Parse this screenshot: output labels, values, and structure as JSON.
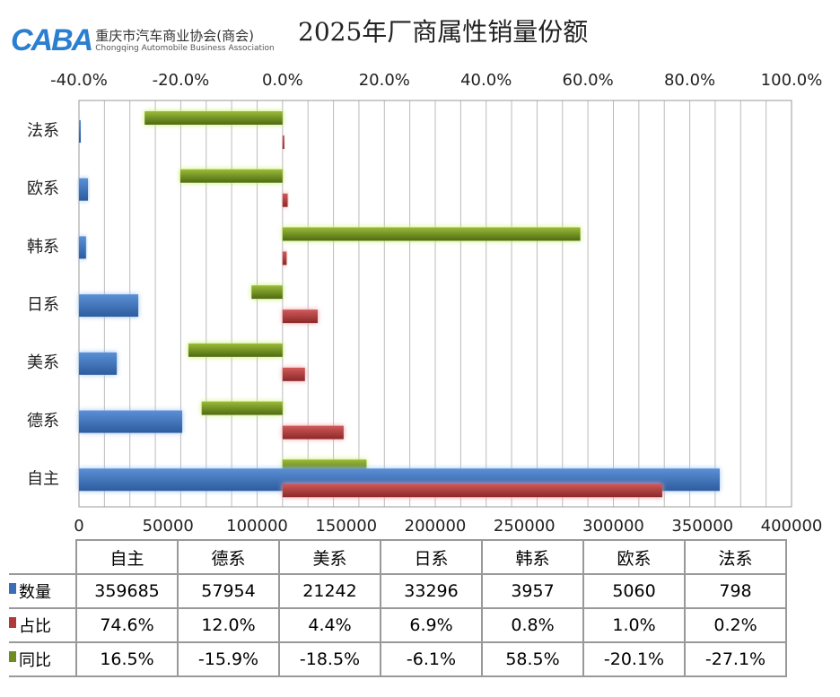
{
  "logo": {
    "mark": "CABA",
    "cn": "重庆市汽车商业协会(商会)",
    "en": "Chongqing Automobile Business Association"
  },
  "chart_data": {
    "type": "bar",
    "orientation": "horizontal",
    "title": "2025年厂商属性销量份额",
    "categories": [
      "自主",
      "德系",
      "美系",
      "日系",
      "韩系",
      "欧系",
      "法系"
    ],
    "series": [
      {
        "name": "数量",
        "axis": "bottom",
        "color": "#3a6db5",
        "values": [
          359685,
          57954,
          21242,
          33296,
          3957,
          5060,
          798
        ],
        "labels": [
          "359685",
          "57954",
          "21242",
          "33296",
          "3957",
          "5060",
          "798"
        ]
      },
      {
        "name": "占比",
        "axis": "top",
        "color": "#b03a3a",
        "values": [
          74.6,
          12.0,
          4.4,
          6.9,
          0.8,
          1.0,
          0.2
        ],
        "labels": [
          "74.6%",
          "12.0%",
          "4.4%",
          "6.9%",
          "0.8%",
          "1.0%",
          "0.2%"
        ]
      },
      {
        "name": "同比",
        "axis": "top",
        "color": "#6e8c22",
        "values": [
          16.5,
          -15.9,
          -18.5,
          -6.1,
          58.5,
          -20.1,
          -27.1
        ],
        "labels": [
          "16.5%",
          "-15.9%",
          "-18.5%",
          "-6.1%",
          "58.5%",
          "-20.1%",
          "-27.1%"
        ]
      }
    ],
    "bottom_axis": {
      "range": [
        0,
        400000
      ],
      "ticks": [
        "0",
        "50000",
        "100000",
        "150000",
        "200000",
        "250000",
        "300000",
        "350000",
        "400000"
      ]
    },
    "top_axis": {
      "range": [
        -40,
        100
      ],
      "ticks": [
        "-40.0%",
        "-20.0%",
        "0.0%",
        "20.0%",
        "40.0%",
        "60.0%",
        "80.0%",
        "100.0%"
      ]
    },
    "grid": "vertical",
    "legend": "data-table-bottom"
  }
}
